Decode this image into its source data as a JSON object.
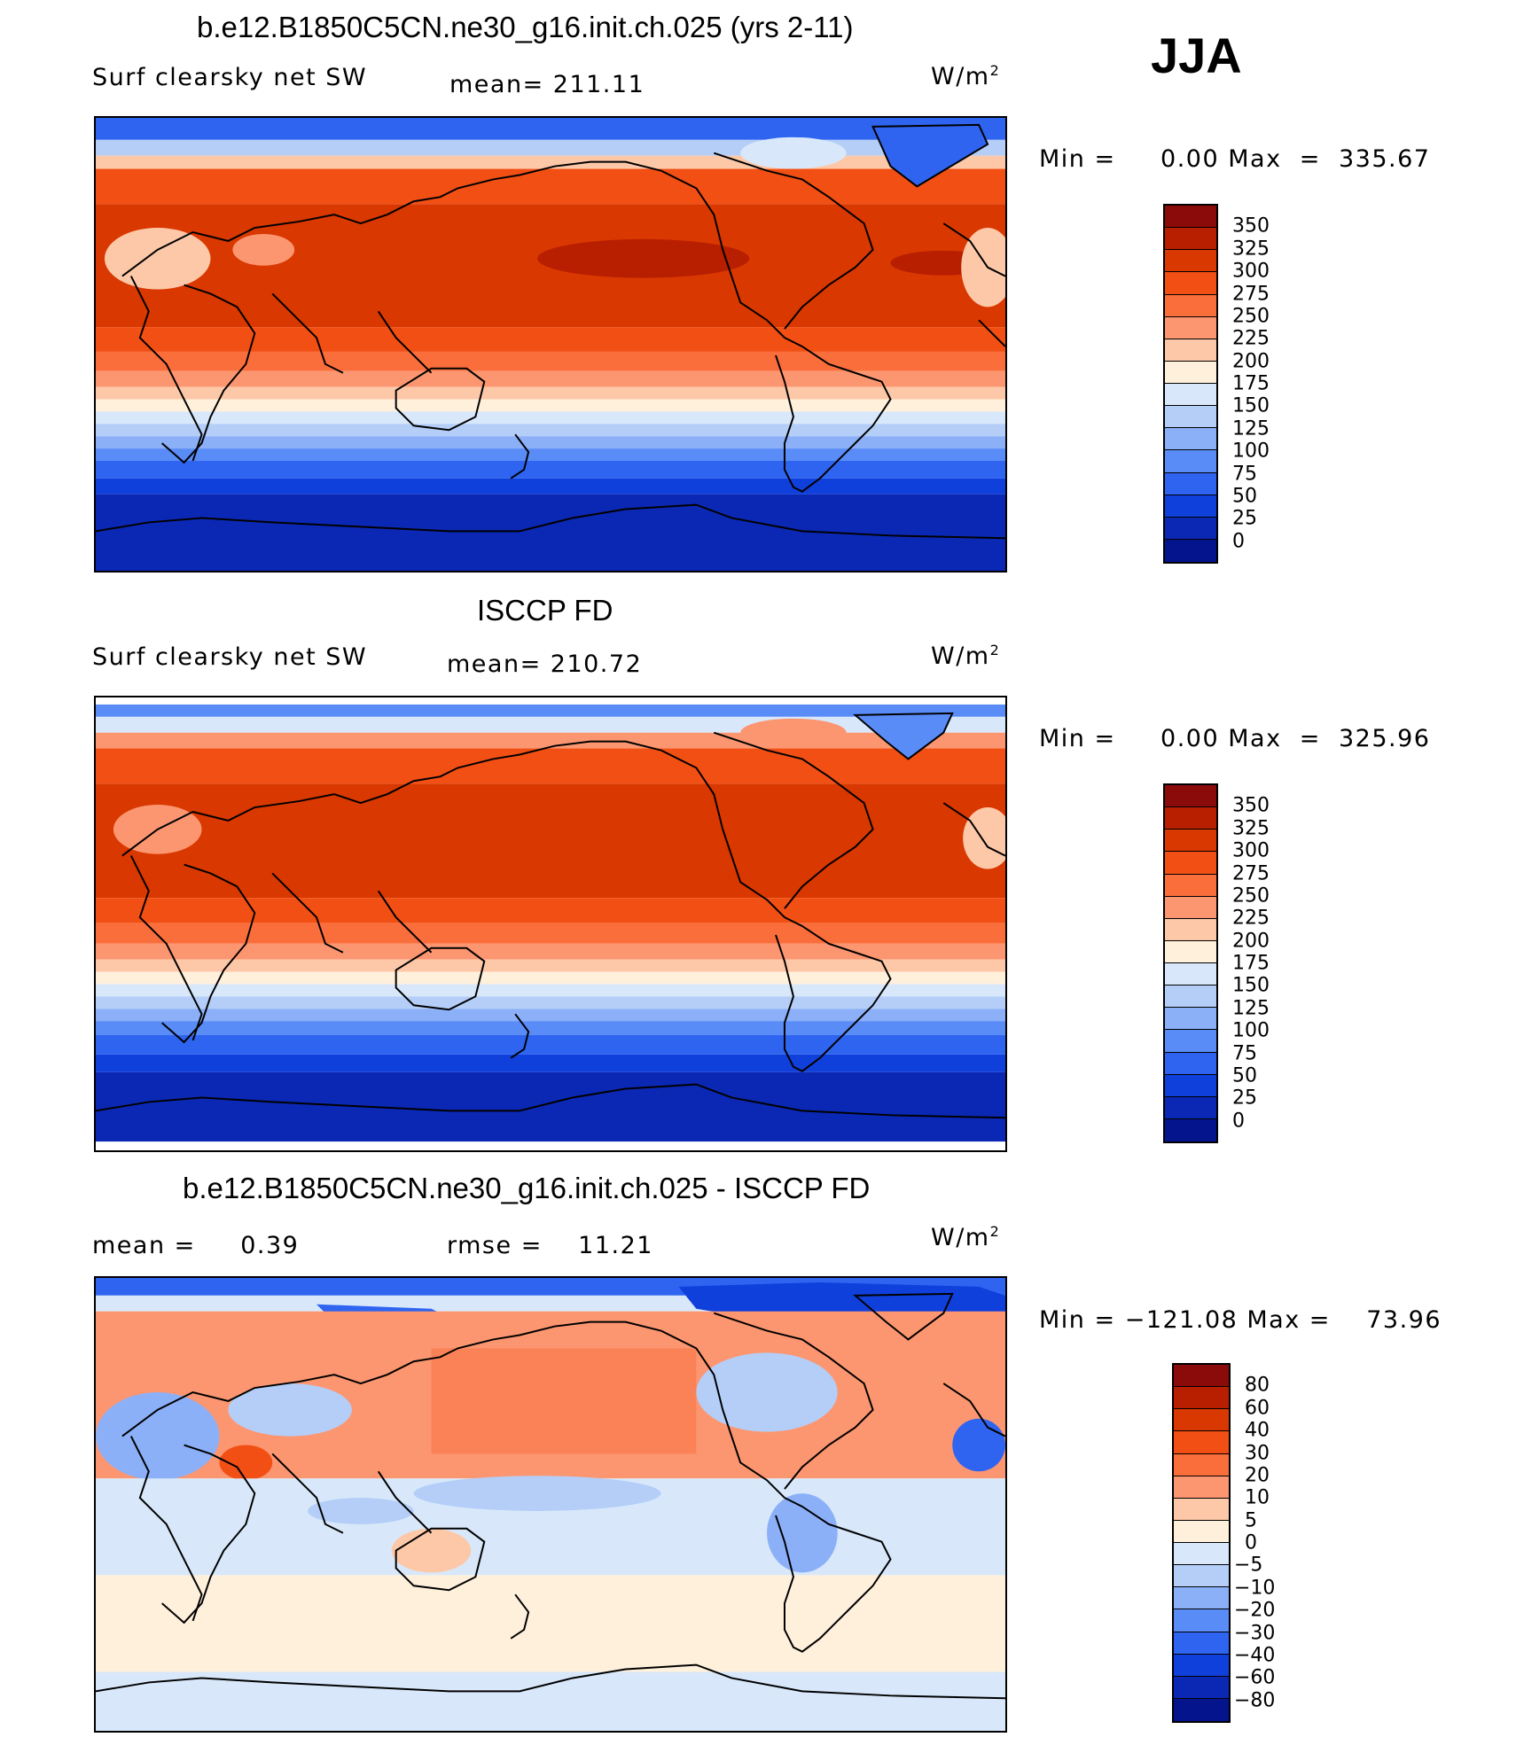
{
  "season": "JJA",
  "units_base": "W/m",
  "units_exp": "2",
  "panels": [
    {
      "title": "b.e12.B1850C5CN.ne30_g16.init.ch.025 (yrs 2-11)",
      "left_label": "Surf clearsky net SW",
      "mid_label": "mean= 211.11",
      "minmax": "Min =     0.00 Max  =  335.67"
    },
    {
      "title": "ISCCP FD",
      "left_label": "Surf clearsky net SW",
      "mid_label": "mean= 210.72",
      "minmax": "Min =     0.00 Max  =  325.96"
    },
    {
      "title": "b.e12.B1850C5CN.ne30_g16.init.ch.025 - ISCCP FD",
      "left_label": "mean =     0.39",
      "mid_label": "rmse =    11.21",
      "minmax": "Min = −121.08 Max =    73.96"
    }
  ],
  "colorbar_abs": {
    "labels": [
      "350",
      "325",
      "300",
      "275",
      "250",
      "225",
      "200",
      "175",
      "150",
      "125",
      "100",
      "75",
      "50",
      "25",
      "0"
    ],
    "colors": [
      "#8b0a0a",
      "#b81e00",
      "#d93800",
      "#f24f14",
      "#fa6e3c",
      "#fc9670",
      "#fdc8a8",
      "#fff0dc",
      "#d8e8fa",
      "#b4cef8",
      "#8cb0f8",
      "#5a8cf8",
      "#2e64f0",
      "#1040dc",
      "#0a28b4",
      "#04148c"
    ]
  },
  "colorbar_diff": {
    "labels": [
      "80",
      "60",
      "40",
      "30",
      "20",
      "10",
      "5",
      "0",
      "−5",
      "−10",
      "−20",
      "−30",
      "−40",
      "−60",
      "−80"
    ],
    "colors": [
      "#8b0a0a",
      "#b81e00",
      "#d93800",
      "#f24f14",
      "#fa6e3c",
      "#fc9670",
      "#fdc8a8",
      "#fff0dc",
      "#d8e8fa",
      "#b4cef8",
      "#8cb0f8",
      "#5a8cf8",
      "#2e64f0",
      "#1040dc",
      "#0a28b4",
      "#04148c"
    ]
  }
}
